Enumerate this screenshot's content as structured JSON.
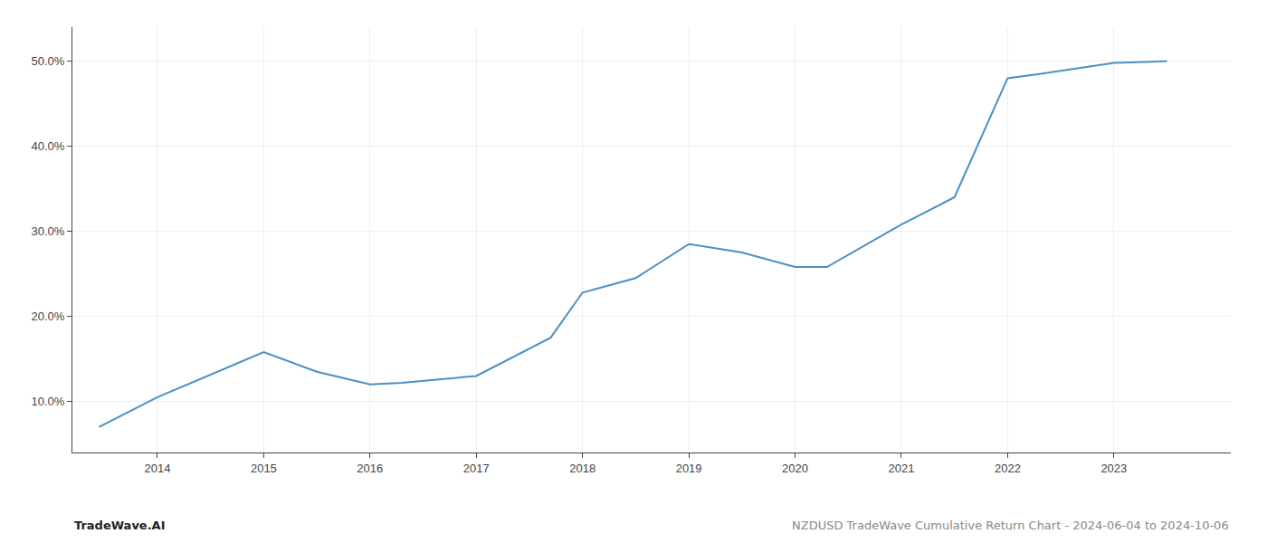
{
  "chart_data": {
    "type": "line",
    "x": [
      2013.45,
      2014.0,
      2015.0,
      2015.5,
      2016.0,
      2016.3,
      2017.0,
      2017.7,
      2018.0,
      2018.5,
      2019.0,
      2019.5,
      2020.0,
      2020.3,
      2021.0,
      2021.5,
      2022.0,
      2022.3,
      2023.0,
      2023.5
    ],
    "values": [
      7.0,
      10.5,
      15.8,
      13.5,
      12.0,
      12.2,
      13.0,
      17.5,
      22.8,
      24.5,
      28.5,
      27.5,
      25.8,
      25.8,
      30.8,
      34.0,
      48.0,
      48.5,
      49.8,
      50.0
    ],
    "color": "#4a90c4",
    "xlim": [
      2013.2,
      2024.1
    ],
    "xticks": [
      2014,
      2015,
      2016,
      2017,
      2018,
      2019,
      2020,
      2021,
      2022,
      2023
    ],
    "ylim": [
      4.0,
      54.0
    ],
    "yticks": [
      {
        "value": 10.0,
        "label": "10.0%"
      },
      {
        "value": 20.0,
        "label": "20.0%"
      },
      {
        "value": 30.0,
        "label": "30.0%"
      },
      {
        "value": 40.0,
        "label": "40.0%"
      },
      {
        "value": 50.0,
        "label": "50.0%"
      }
    ],
    "grid": true,
    "annotations": [
      "TradeWave.AI",
      "NZDUSD TradeWave Cumulative Return Chart - 2024-06-04 to 2024-10-06"
    ]
  }
}
